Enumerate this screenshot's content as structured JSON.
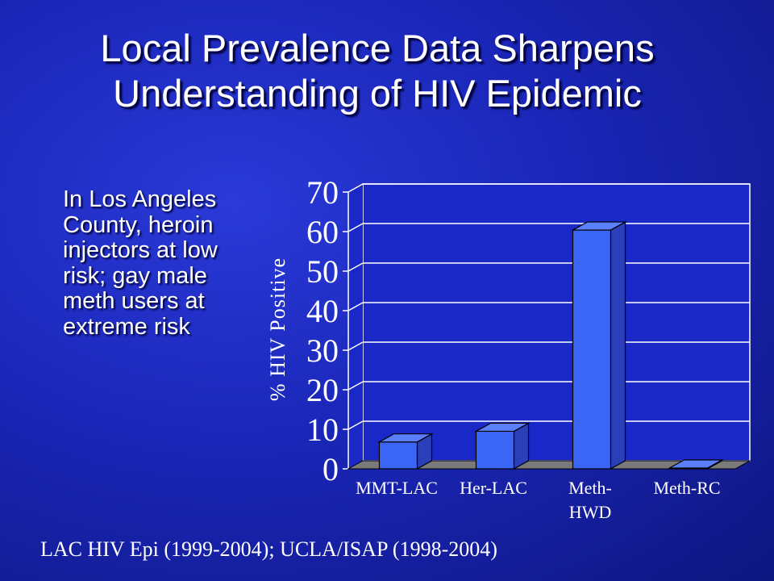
{
  "slide": {
    "title_line1": "Local Prevalence Data Sharpens",
    "title_line2": "Understanding of HIV Epidemic",
    "bullet": "In Los Angeles County, heroin injectors at low risk; gay male meth users at extreme risk",
    "source": "LAC HIV Epi (1999-2004); UCLA/ISAP (1998-2004)"
  },
  "chart_data": {
    "type": "bar",
    "style": "3d",
    "categories": [
      [
        "MMT-LAC"
      ],
      [
        "Her-LAC"
      ],
      [
        "Meth-",
        "HWD"
      ],
      [
        "Meth-RC"
      ]
    ],
    "values": [
      6.8,
      9.5,
      60.4,
      0.2
    ],
    "ylabel": "% HIV Positive",
    "ylim": [
      0,
      70
    ],
    "yticks": [
      0,
      10,
      20,
      30,
      40,
      50,
      60,
      70
    ],
    "grid": true,
    "colors": {
      "bar_front": "#3b66f5",
      "bar_side": "#2a3fb8",
      "bar_top": "#5a80ff",
      "floor": "#7a7a7a",
      "plot_bg": "#1a28c8",
      "text": "#ffffff",
      "grid": "#ffffff"
    }
  }
}
